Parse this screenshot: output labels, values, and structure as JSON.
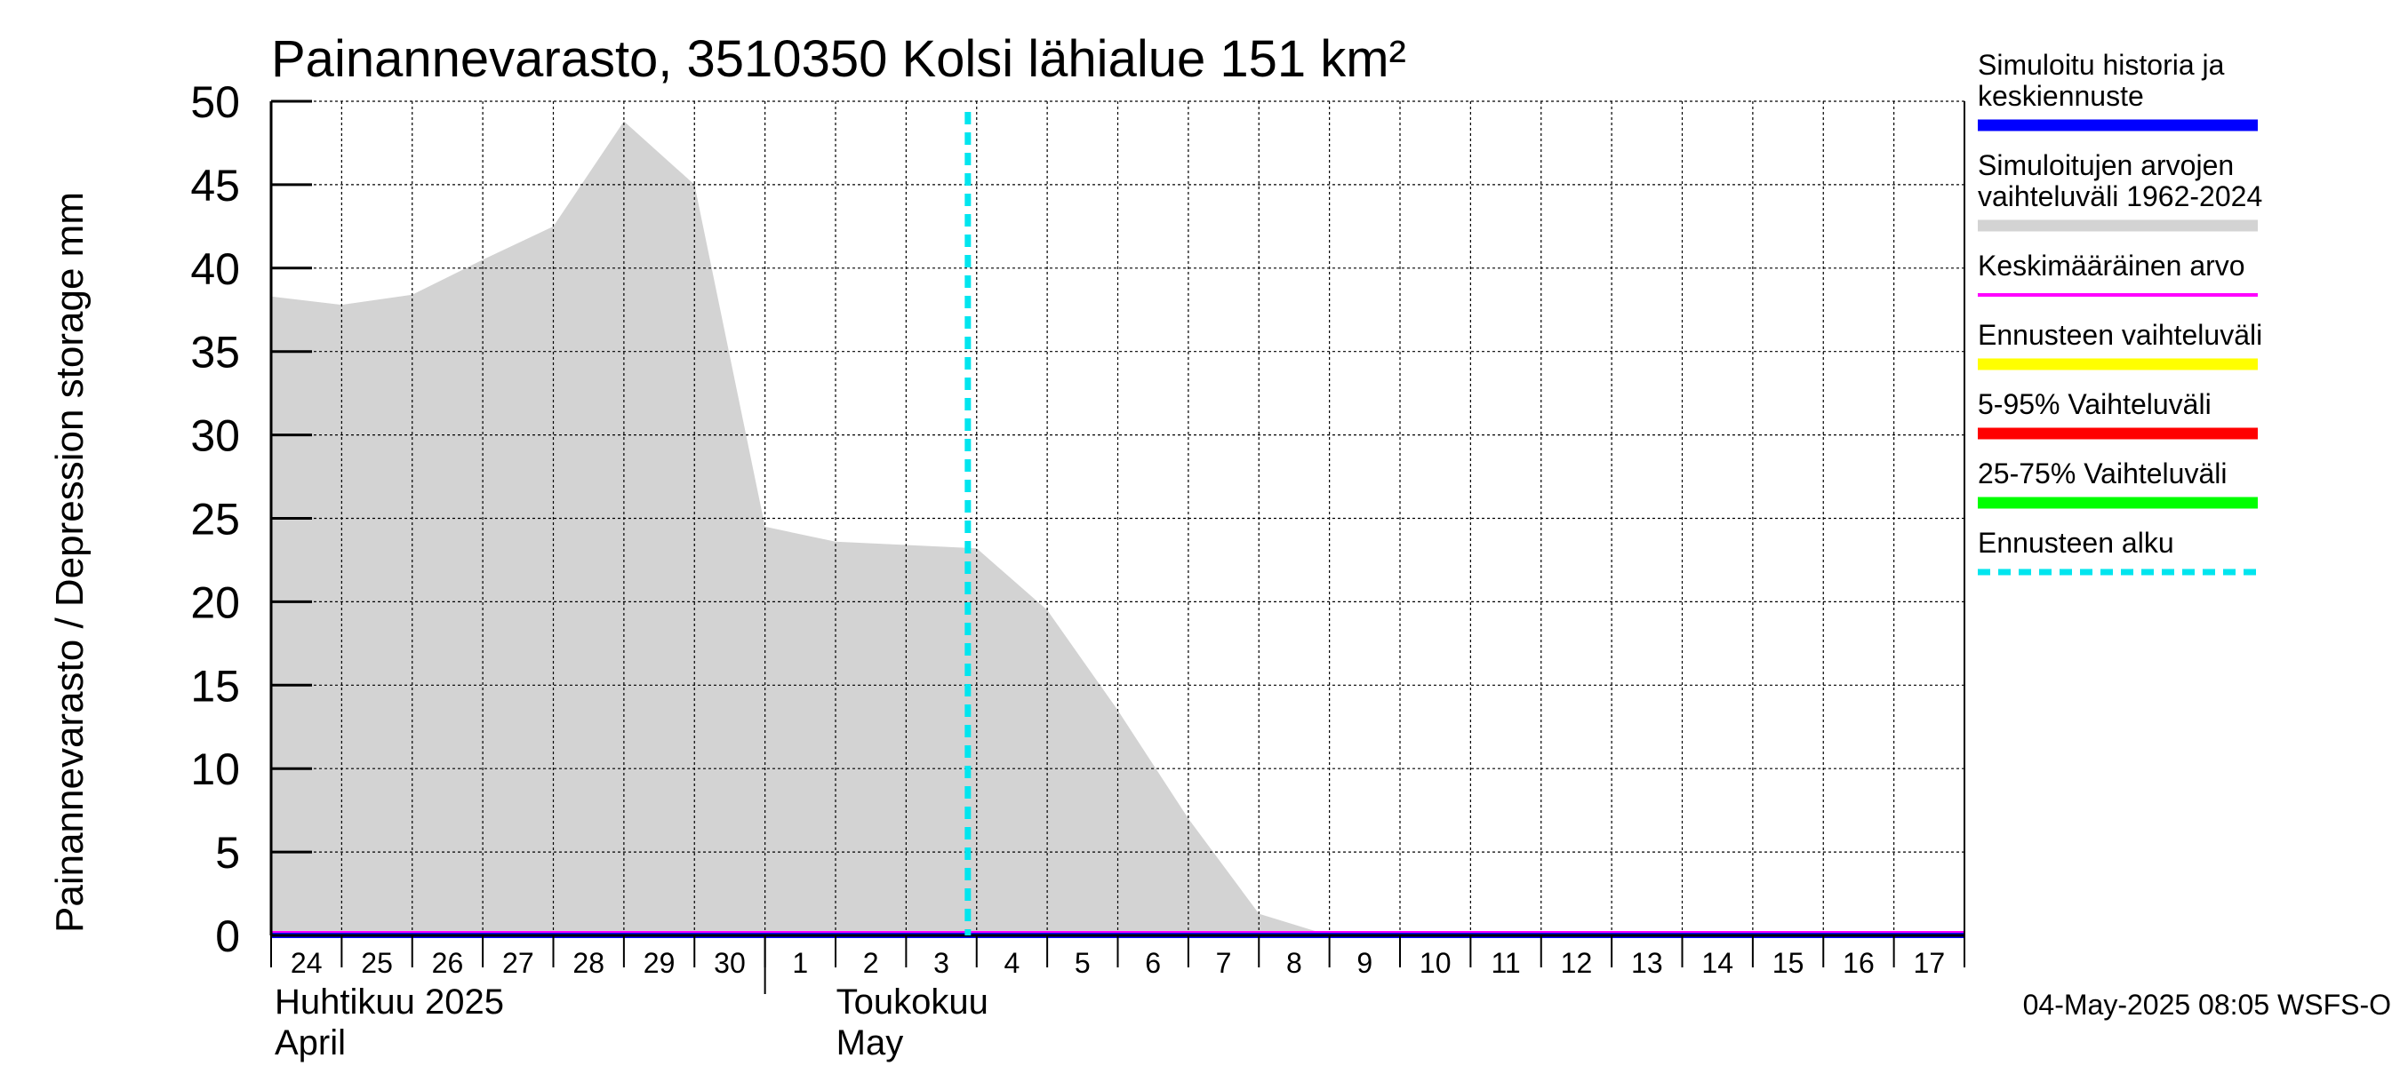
{
  "chart_data": {
    "type": "area",
    "title": "Painannevarasto, 3510350 Kolsi lähialue 151 km²",
    "ylabel": "Painannevarasto / Depression storage    mm",
    "ylim": [
      0,
      50
    ],
    "yticks": [
      0,
      5,
      10,
      15,
      20,
      25,
      30,
      35,
      40,
      45,
      50
    ],
    "grid": true,
    "legend_position": "right",
    "x_day_labels": [
      "24",
      "25",
      "26",
      "27",
      "28",
      "29",
      "30",
      "1",
      "2",
      "3",
      "4",
      "5",
      "6",
      "7",
      "8",
      "9",
      "10",
      "11",
      "12",
      "13",
      "14",
      "15",
      "16",
      "17"
    ],
    "month_labels": [
      {
        "line1": "Huhtikuu  2025",
        "line2": "April"
      },
      {
        "line1": "Toukokuu",
        "line2": "May"
      }
    ],
    "x_dates": [
      "2025-04-24",
      "2025-04-25",
      "2025-04-26",
      "2025-04-27",
      "2025-04-28",
      "2025-04-29",
      "2025-04-30",
      "2025-05-01",
      "2025-05-02",
      "2025-05-03",
      "2025-05-04",
      "2025-05-05",
      "2025-05-06",
      "2025-05-07",
      "2025-05-08",
      "2025-05-09",
      "2025-05-10",
      "2025-05-11",
      "2025-05-12",
      "2025-05-13",
      "2025-05-14",
      "2025-05-15",
      "2025-05-16",
      "2025-05-17"
    ],
    "series": [
      {
        "name": "Simuloitujen arvojen vaihteluväli 1962-2024",
        "kind": "band",
        "color": "#d3d3d3",
        "lower": [
          0,
          0,
          0,
          0,
          0,
          0,
          0,
          0,
          0,
          0,
          0,
          0,
          0,
          0,
          0,
          0,
          0,
          0,
          0,
          0,
          0,
          0,
          0,
          0
        ],
        "upper": [
          38.3,
          37.8,
          38.4,
          40.5,
          42.5,
          48.8,
          45.0,
          24.5,
          23.6,
          23.4,
          23.2,
          19.5,
          13.5,
          7.0,
          1.3,
          0,
          0,
          0,
          0,
          0,
          0,
          0,
          0,
          0
        ]
      },
      {
        "name": "Keskimääräinen arvo",
        "kind": "line",
        "color": "#ff00ff",
        "values": [
          0,
          0,
          0,
          0,
          0,
          0,
          0,
          0,
          0,
          0,
          0,
          0,
          0,
          0,
          0,
          0,
          0,
          0,
          0,
          0,
          0,
          0,
          0,
          0
        ]
      },
      {
        "name": "Simuloitu historia ja keskiennuste",
        "kind": "line",
        "color": "#0000ff",
        "values": [
          0,
          0,
          0,
          0,
          0,
          0,
          0,
          0,
          0,
          0,
          0,
          0,
          0,
          0,
          0,
          0,
          0,
          0,
          0,
          0,
          0,
          0,
          0,
          0
        ]
      }
    ],
    "forecast_start": "2025-05-03 21:00"
  },
  "legend": [
    {
      "line1": "Simuloitu historia ja",
      "line2": "keskiennuste",
      "color": "#0000ff",
      "style": "solid"
    },
    {
      "line1": "Simuloitujen arvojen",
      "line2": "vaihteluväli 1962-2024",
      "color": "#d3d3d3",
      "style": "solid"
    },
    {
      "line1": "Keskimääräinen arvo",
      "line2": "",
      "color": "#ff00ff",
      "style": "thin"
    },
    {
      "line1": "Ennusteen vaihteluväli",
      "line2": "",
      "color": "#ffff00",
      "style": "solid"
    },
    {
      "line1": "5-95% Vaihteluväli",
      "line2": "",
      "color": "#ff0000",
      "style": "solid"
    },
    {
      "line1": "25-75% Vaihteluväli",
      "line2": "",
      "color": "#00ff00",
      "style": "solid"
    },
    {
      "line1": "Ennusteen alku",
      "line2": "",
      "color": "#00e5ee",
      "style": "dashed"
    }
  ],
  "footer": "04-May-2025 08:05 WSFS-O"
}
